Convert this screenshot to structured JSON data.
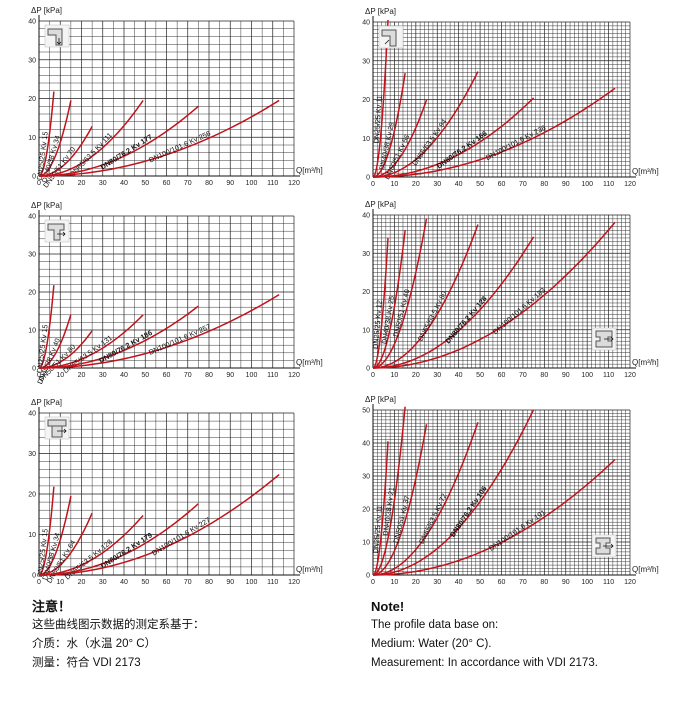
{
  "chart_data": [
    {
      "type": "line",
      "ylabel": "ΔP [kPa]",
      "xlabel": "Q[m³/h]",
      "xlim": [
        0,
        120
      ],
      "ylim": [
        0,
        40
      ],
      "xticks": [
        0,
        10,
        20,
        30,
        40,
        50,
        60,
        70,
        80,
        90,
        100,
        110,
        120
      ],
      "yticks": [
        0,
        10,
        20,
        30,
        40
      ],
      "icon": "pipe-elbow-down-icon",
      "icon_pos": "top-left",
      "series": [
        {
          "name": "DN25/25",
          "kv": "Kv 15",
          "values_x": [
            0,
            7
          ],
          "values_y": [
            0,
            21.8
          ]
        },
        {
          "name": "DN40/38",
          "kv": "Kv 34",
          "values_x": [
            0,
            15
          ],
          "values_y": [
            0,
            19.5
          ]
        },
        {
          "name": "DN50/51",
          "kv": "Kv 70",
          "values_x": [
            0,
            25
          ],
          "values_y": [
            0,
            12.8
          ]
        },
        {
          "name": "DN65/63.5",
          "kv": "Kv 111",
          "values_x": [
            0,
            49
          ],
          "values_y": [
            0,
            19.5
          ]
        },
        {
          "name": "DN80/76.2",
          "kv": "Kv 177",
          "values_x": [
            0,
            75
          ],
          "values_y": [
            0,
            18.0
          ]
        },
        {
          "name": "DN100/101.6",
          "kv": "Kv 256",
          "values_x": [
            0,
            113
          ],
          "values_y": [
            0,
            19.5
          ]
        }
      ]
    },
    {
      "type": "line",
      "ylabel": "ΔP [kPa]",
      "xlabel": "Q[m³/h]",
      "xlim": [
        0,
        120
      ],
      "ylim": [
        0,
        40
      ],
      "xticks": [
        0,
        10,
        20,
        30,
        40,
        50,
        60,
        70,
        80,
        90,
        100,
        110,
        120
      ],
      "yticks": [
        0,
        10,
        20,
        30,
        40
      ],
      "icon": "pipe-elbow-up-icon",
      "icon_pos": "top-left",
      "series": [
        {
          "name": "DN25/25",
          "kv": "Kv 11",
          "values_x": [
            0,
            7
          ],
          "values_y": [
            0,
            40.5
          ]
        },
        {
          "name": "DN40/38",
          "kv": "Kv 29",
          "values_x": [
            0,
            15
          ],
          "values_y": [
            0,
            26.8
          ]
        },
        {
          "name": "DN50/51",
          "kv": "Kv 56",
          "values_x": [
            0,
            25
          ],
          "values_y": [
            0,
            19.9
          ]
        },
        {
          "name": "DN65/63.5",
          "kv": "Kv 94",
          "values_x": [
            0,
            49
          ],
          "values_y": [
            0,
            27.2
          ]
        },
        {
          "name": "DN80/76.2",
          "kv": "Kv 166",
          "values_x": [
            0,
            75
          ],
          "values_y": [
            0,
            20.4
          ]
        },
        {
          "name": "DN100/101.6",
          "kv": "Kv 236",
          "values_x": [
            0,
            113
          ],
          "values_y": [
            0,
            22.9
          ]
        }
      ]
    },
    {
      "type": "line",
      "ylabel": "ΔP [kPa]",
      "xlabel": "Q[m³/h]",
      "xlim": [
        0,
        120
      ],
      "ylim": [
        0,
        40
      ],
      "xticks": [
        0,
        10,
        20,
        30,
        40,
        50,
        60,
        70,
        80,
        90,
        100,
        110,
        120
      ],
      "yticks": [
        0,
        10,
        20,
        30,
        40
      ],
      "icon": "pipe-tee-icon",
      "icon_pos": "top-left",
      "series": [
        {
          "name": "DN25/25",
          "kv": "Kv 15",
          "values_x": [
            0,
            7
          ],
          "values_y": [
            0,
            21.8
          ]
        },
        {
          "name": "DN40/38",
          "kv": "Kv 40",
          "values_x": [
            0,
            15
          ],
          "values_y": [
            0,
            14.1
          ]
        },
        {
          "name": "DN50/51",
          "kv": "Kv 80",
          "values_x": [
            0,
            25
          ],
          "values_y": [
            0,
            9.8
          ]
        },
        {
          "name": "DN65/63.5",
          "kv": "Kv 131",
          "values_x": [
            0,
            49
          ],
          "values_y": [
            0,
            14.0
          ]
        },
        {
          "name": "DN80/76.2",
          "kv": "Kv 186",
          "values_x": [
            0,
            75
          ],
          "values_y": [
            0,
            16.3
          ]
        },
        {
          "name": "DN100/101.6",
          "kv": "Kv 257",
          "values_x": [
            0,
            113
          ],
          "values_y": [
            0,
            19.3
          ]
        }
      ]
    },
    {
      "type": "line",
      "ylabel": "ΔP [kPa]",
      "xlabel": "Q[m³/h]",
      "xlim": [
        0,
        120
      ],
      "ylim": [
        0,
        40
      ],
      "xticks": [
        0,
        10,
        20,
        30,
        40,
        50,
        60,
        70,
        80,
        90,
        100,
        110,
        120
      ],
      "yticks": [
        0,
        10,
        20,
        30,
        40
      ],
      "icon": "pipe-cross-icon",
      "icon_pos": "bottom-right",
      "series": [
        {
          "name": "DN25/25",
          "kv": "Kv 12",
          "values_x": [
            0,
            7
          ],
          "values_y": [
            0,
            34.0
          ]
        },
        {
          "name": "DN40/38",
          "kv": "Kv 25",
          "values_x": [
            0,
            15
          ],
          "values_y": [
            0,
            36.0
          ]
        },
        {
          "name": "DN50/51",
          "kv": "Kv 40",
          "values_x": [
            0,
            25
          ],
          "values_y": [
            0,
            39.1
          ]
        },
        {
          "name": "DN65/63.5",
          "kv": "Kv 80",
          "values_x": [
            0,
            49
          ],
          "values_y": [
            0,
            37.5
          ]
        },
        {
          "name": "DN80/76.2",
          "kv": "Kv 128",
          "values_x": [
            0,
            75
          ],
          "values_y": [
            0,
            34.3
          ]
        },
        {
          "name": "DN100/101.6",
          "kv": "Kv 183",
          "values_x": [
            0,
            113
          ],
          "values_y": [
            0,
            38.1
          ]
        }
      ]
    },
    {
      "type": "line",
      "ylabel": "ΔP [kPa]",
      "xlabel": "Q[m³/h]",
      "xlim": [
        0,
        120
      ],
      "ylim": [
        0,
        40
      ],
      "xticks": [
        0,
        10,
        20,
        30,
        40,
        50,
        60,
        70,
        80,
        90,
        100,
        110,
        120
      ],
      "yticks": [
        0,
        10,
        20,
        30,
        40
      ],
      "icon": "pipe-double-tee-icon",
      "icon_pos": "top-left",
      "series": [
        {
          "name": "DN25/25",
          "kv": "Kv 15",
          "values_x": [
            0,
            7
          ],
          "values_y": [
            0,
            21.8
          ]
        },
        {
          "name": "DN40/38",
          "kv": "Kv 34",
          "values_x": [
            0,
            15
          ],
          "values_y": [
            0,
            19.5
          ]
        },
        {
          "name": "DN50/51",
          "kv": "Kv 64",
          "values_x": [
            0,
            25
          ],
          "values_y": [
            0,
            15.3
          ]
        },
        {
          "name": "DN65/63.5",
          "kv": "Kv 128",
          "values_x": [
            0,
            49
          ],
          "values_y": [
            0,
            14.7
          ]
        },
        {
          "name": "DN80/76.2",
          "kv": "Kv 179",
          "values_x": [
            0,
            75
          ],
          "values_y": [
            0,
            17.6
          ]
        },
        {
          "name": "DN100/101.6",
          "kv": "Kv 227",
          "values_x": [
            0,
            113
          ],
          "values_y": [
            0,
            24.8
          ]
        }
      ]
    },
    {
      "type": "line",
      "ylabel": "ΔP [kPa]",
      "xlabel": "Q[m³/h]",
      "xlim": [
        0,
        120
      ],
      "ylim": [
        0,
        50
      ],
      "xticks": [
        0,
        10,
        20,
        30,
        40,
        50,
        60,
        70,
        80,
        90,
        100,
        110,
        120
      ],
      "yticks": [
        0,
        10,
        20,
        30,
        40,
        50
      ],
      "icon": "pipe-manifold-icon",
      "icon_pos": "bottom-right",
      "series": [
        {
          "name": "DN25/25",
          "kv": "Kv 11",
          "values_x": [
            0,
            7
          ],
          "values_y": [
            0,
            40.5
          ]
        },
        {
          "name": "DN40/38",
          "kv": "Kv 21",
          "values_x": [
            0,
            15
          ],
          "values_y": [
            0,
            51.0
          ]
        },
        {
          "name": "DN50/51",
          "kv": "Kv 37",
          "values_x": [
            0,
            25
          ],
          "values_y": [
            0,
            45.7
          ]
        },
        {
          "name": "DN65/63.5",
          "kv": "Kv 72",
          "values_x": [
            0,
            49
          ],
          "values_y": [
            0,
            46.3
          ]
        },
        {
          "name": "DN80/76.2",
          "kv": "Kv 106",
          "values_x": [
            0,
            75
          ],
          "values_y": [
            0,
            50.1
          ]
        },
        {
          "name": "DN100/101.6",
          "kv": "Kv 191",
          "values_x": [
            0,
            113
          ],
          "values_y": [
            0,
            35.0
          ]
        }
      ]
    }
  ],
  "notes": {
    "zh": {
      "title": "注意！",
      "line1": "这些曲线图示数据的测定系基于：",
      "line2": "介质：水（水温 20° C）",
      "line3": "测量：符合 VDI 2173"
    },
    "en": {
      "title": "Note!",
      "line1": "The profile data base on:",
      "line2": "Medium: Water (20° C).",
      "line3": "Measurement: In accordance with VDI 2173."
    }
  },
  "colors": {
    "curve": "#c0141c",
    "grid": "#222222",
    "axis": "#111111"
  }
}
